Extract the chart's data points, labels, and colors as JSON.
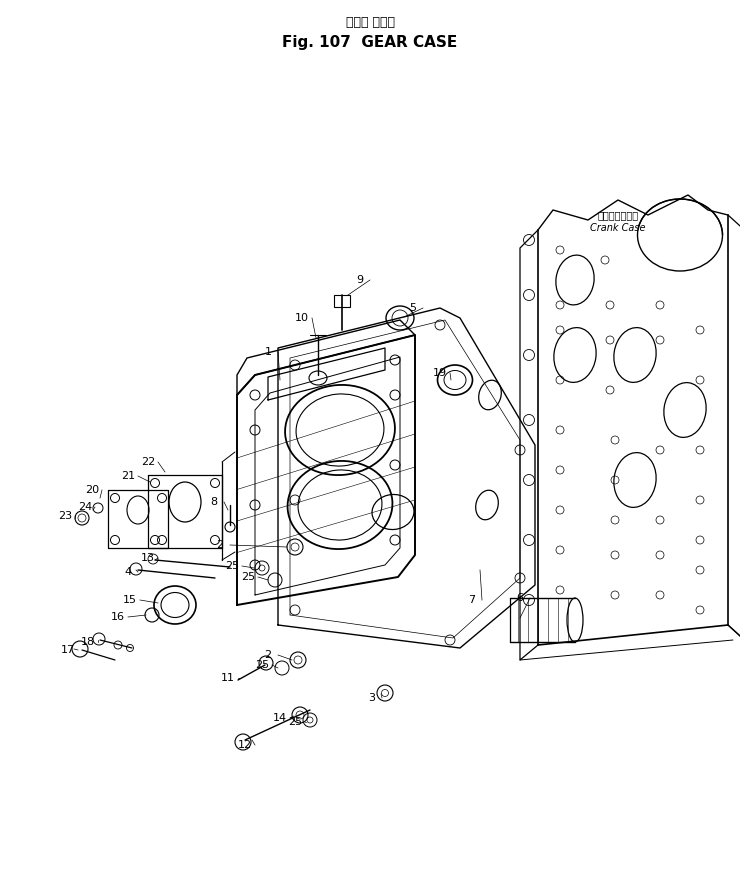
{
  "title_jp": "ギヤー ケース",
  "title_en": "Fig. 107  GEAR CASE",
  "bg_color": "#ffffff",
  "line_color": "#000000",
  "crank_label_jp": "クランクケース",
  "crank_label_en": "Crank Case",
  "fig_width": 7.4,
  "fig_height": 8.71
}
